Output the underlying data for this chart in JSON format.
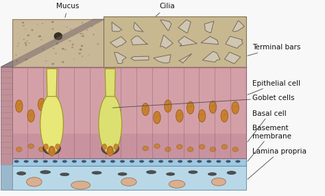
{
  "bg_color": "#f8f8f8",
  "fig_width": 4.74,
  "fig_height": 2.86,
  "dpi": 100,
  "labels": {
    "mucus": "Mucus",
    "cilia": "Cilia",
    "terminal_bars": "Terminal bars",
    "epithelial_cell": "Epithelial cell",
    "goblet_cells": "Goblet cells",
    "basal_cell": "Basal cell",
    "basement_membrane": "Basement\nmembrane",
    "lamina_propria": "Lamina propria"
  },
  "colors": {
    "epi_pink": "#d4a0a8",
    "epi_pink2": "#c89098",
    "epi_left": "#b87880",
    "epi_top": "#c89090",
    "cell_line": "#906070",
    "goblet_yellow": "#e8e878",
    "goblet_yellow2": "#dce070",
    "goblet_edge": "#a09828",
    "nucleus_fill": "#c88030",
    "nucleus_edge": "#a06018",
    "basal_dark": "#4a3030",
    "basal_mid": "#705050",
    "mucus_beige": "#c8b898",
    "mucus_light": "#ddd0b8",
    "mucus_edge": "#907858",
    "cilia_tan": "#c8b890",
    "cilia_light": "#ddd0b0",
    "cilia_edge": "#807050",
    "polygon_face": "#d0c8b8",
    "polygon_edge": "#706050",
    "top_bar": "#8a8080",
    "basement_blue": "#a0c8e0",
    "basement_edge": "#6090b0",
    "lamina_blue": "#b8d8e8",
    "lamina_edge": "#7098b0",
    "lp_vessel": "#d8b090",
    "lp_dark_oval": "#505050",
    "left_side_pink": "#c09098",
    "left_hatch": "#9a7070",
    "top_left_pink": "#d0a8b0",
    "annotation_line": "#505050",
    "annotation_text": "#101010"
  },
  "font_size": 7.5
}
